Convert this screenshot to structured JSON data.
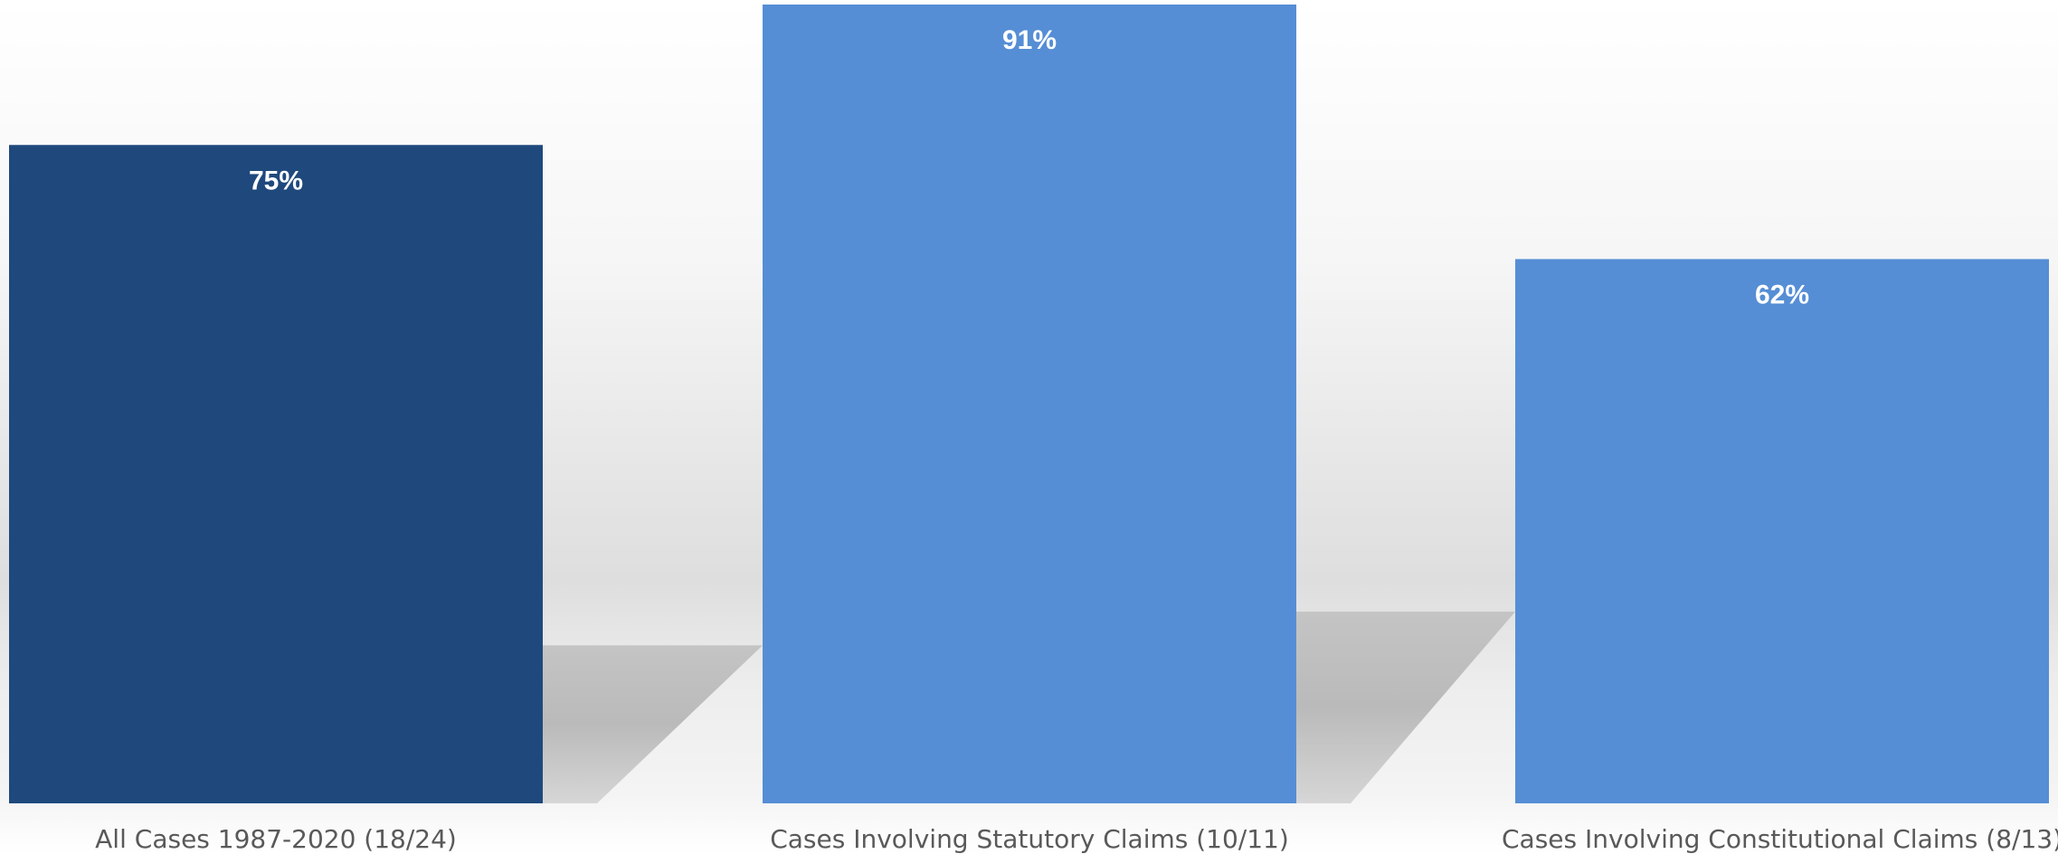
{
  "chart_data": {
    "type": "bar",
    "categories": [
      "All Cases 1987-2020 (18/24)",
      "Cases Involving Statutory Claims (10/11)",
      "Cases Involving Constitutional Claims (8/13)"
    ],
    "values": [
      75,
      91,
      62
    ],
    "data_labels": [
      "75%",
      "91%",
      "62%"
    ],
    "value_unit": "%",
    "ylim": [
      0,
      100
    ],
    "grid": false,
    "legend": "none",
    "title": "",
    "xlabel": "",
    "ylabel": "",
    "colors": {
      "bars": [
        "#1F497D",
        "#558ED5",
        "#558ED5"
      ],
      "data_label": "#FFFFFF",
      "category_label": "#595959",
      "shadow": "#BDBDBD"
    }
  }
}
